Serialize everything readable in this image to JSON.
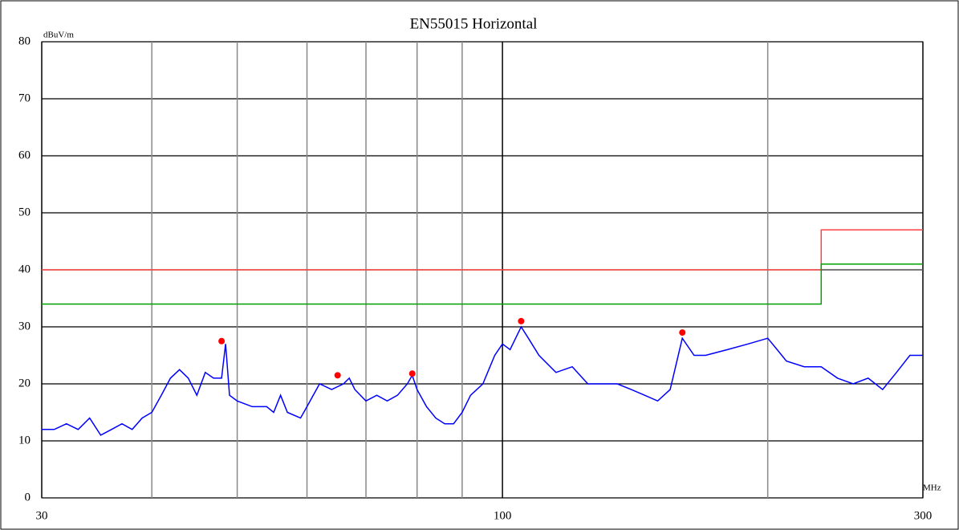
{
  "chart_data": {
    "type": "line",
    "title": "EN55015  Horizontal",
    "y_label": "dBuV/m",
    "x_label": "MHz",
    "x_log": true,
    "xlim": [
      30,
      300
    ],
    "xticks": [
      30,
      100,
      300
    ],
    "xgrid": [
      40,
      50,
      60,
      70,
      80,
      90,
      200
    ],
    "ylim": [
      0,
      80
    ],
    "yticks": [
      0,
      10,
      20,
      30,
      40,
      50,
      60,
      70,
      80
    ],
    "grid": true,
    "series": [
      {
        "color": "#ff4040",
        "x": [
          30,
          230,
          230,
          300
        ],
        "values": [
          40,
          40,
          47,
          47
        ]
      },
      {
        "color": "#00a000",
        "x": [
          30,
          230,
          230,
          300
        ],
        "values": [
          34,
          34,
          41,
          41
        ]
      },
      {
        "color": "#606060",
        "x": [
          230,
          300
        ],
        "values": [
          40,
          40
        ]
      },
      {
        "color": "#0000ff",
        "x": [
          30,
          31,
          32,
          33,
          34,
          35,
          36,
          37,
          38,
          39,
          40,
          41,
          42,
          43,
          44,
          45,
          46,
          47,
          48,
          48.5,
          49,
          50,
          52,
          54,
          55,
          56,
          57,
          59,
          60,
          62,
          64,
          66,
          67,
          68,
          70,
          72,
          74,
          76,
          78,
          79,
          80,
          82,
          84,
          86,
          88,
          90,
          92,
          95,
          98,
          100,
          102,
          105,
          107,
          110,
          115,
          120,
          125,
          130,
          135,
          140,
          145,
          150,
          155,
          160,
          165,
          170,
          180,
          190,
          200,
          205,
          210,
          220,
          230,
          240,
          250,
          260,
          270,
          280,
          290,
          300
        ],
        "values": [
          12,
          12,
          13,
          12,
          14,
          11,
          12,
          13,
          12,
          14,
          15,
          18,
          21,
          22.5,
          21,
          18,
          22,
          21,
          21,
          27,
          18,
          17,
          16,
          16,
          15,
          18,
          15,
          14,
          16,
          20,
          19,
          20,
          21,
          19,
          17,
          18,
          17,
          18,
          20,
          21.5,
          19,
          16,
          14,
          13,
          13,
          15,
          18,
          20,
          25,
          27,
          26,
          30,
          28,
          25,
          22,
          23,
          20,
          20,
          20,
          19,
          18,
          17,
          19,
          28,
          25,
          25,
          26,
          27,
          28,
          26,
          24,
          23,
          23,
          21,
          20,
          21,
          19,
          22,
          25,
          25
        ]
      }
    ],
    "markers": {
      "color": "#ff0000",
      "x": [
        48,
        65,
        79,
        105,
        160
      ],
      "values": [
        27.5,
        21.5,
        21.8,
        31,
        29
      ]
    }
  }
}
